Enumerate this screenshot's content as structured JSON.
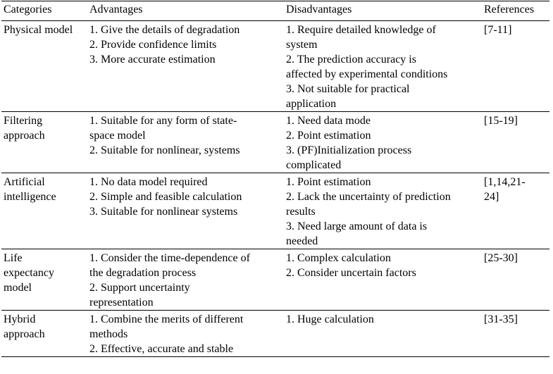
{
  "headers": {
    "categories": "Categories",
    "advantages": "Advantages",
    "disadvantages": "Disadvantages",
    "references": "References"
  },
  "rows": [
    {
      "category": [
        "Physical model"
      ],
      "advantages": [
        "1. Give the details of degradation",
        "2. Provide confidence limits",
        "3. More accurate estimation"
      ],
      "disadvantages": [
        "1. Require detailed knowledge of",
        "system",
        "2. The prediction accuracy is",
        "affected by experimental conditions",
        "3. Not suitable for practical",
        "application"
      ],
      "references": [
        "[7-11]"
      ]
    },
    {
      "category": [
        "Filtering",
        "approach"
      ],
      "advantages": [
        "1. Suitable for any form of state-",
        "space model",
        "2. Suitable for nonlinear, systems"
      ],
      "disadvantages": [
        "1. Need data mode",
        "2. Point estimation",
        "3. (PF)Initialization process",
        "complicated"
      ],
      "references": [
        "[15-19]"
      ]
    },
    {
      "category": [
        "Artificial",
        "intelligence"
      ],
      "advantages": [
        "1. No data model required",
        "2. Simple and feasible calculation",
        "3. Suitable for nonlinear systems"
      ],
      "disadvantages": [
        "1. Point estimation",
        "2. Lack the uncertainty of prediction",
        "results",
        "3. Need large amount of data is",
        "needed"
      ],
      "references": [
        "[1,14,21-",
        "24]"
      ]
    },
    {
      "category": [
        "Life",
        "expectancy",
        "model"
      ],
      "advantages": [
        "1. Consider the time-dependence of",
        "the degradation process",
        "2. Support uncertainty",
        "representation"
      ],
      "disadvantages": [
        "1. Complex calculation",
        "2. Consider uncertain factors"
      ],
      "references": [
        "[25-30]"
      ]
    },
    {
      "category": [
        "Hybrid",
        "approach"
      ],
      "advantages": [
        "1. Combine the merits of different",
        "methods",
        "2. Effective, accurate and stable"
      ],
      "disadvantages": [
        "1. Huge calculation"
      ],
      "references": [
        "[31-35]"
      ]
    }
  ]
}
